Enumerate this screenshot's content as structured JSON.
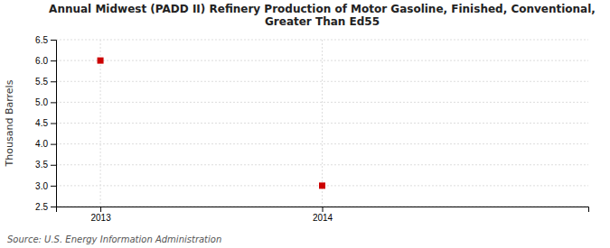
{
  "chart_data": {
    "type": "scatter",
    "title": "Annual Midwest (PADD II) Refinery Production of Motor Gasoline, Finished, Conventional,\nGreater Than Ed55",
    "ylabel": "Thousand Barrels",
    "source": "Source: U.S. Energy Information Administration",
    "x": [
      2013,
      2014
    ],
    "values": [
      6.0,
      3.0
    ],
    "color": "#cc0000",
    "marker": "square",
    "xlim": [
      2012.8,
      2015.2
    ],
    "ylim": [
      2.5,
      6.5
    ],
    "xticks": [
      2013,
      2014
    ],
    "yticks": [
      2.5,
      {
        "value": 3,
        "label": "3.0"
      },
      3.5,
      {
        "value": 4,
        "label": "4.0"
      },
      4.5,
      {
        "value": 5,
        "label": "5.0"
      },
      5.5,
      {
        "value": 6,
        "label": "6.0"
      },
      6.5
    ],
    "grid": true
  }
}
